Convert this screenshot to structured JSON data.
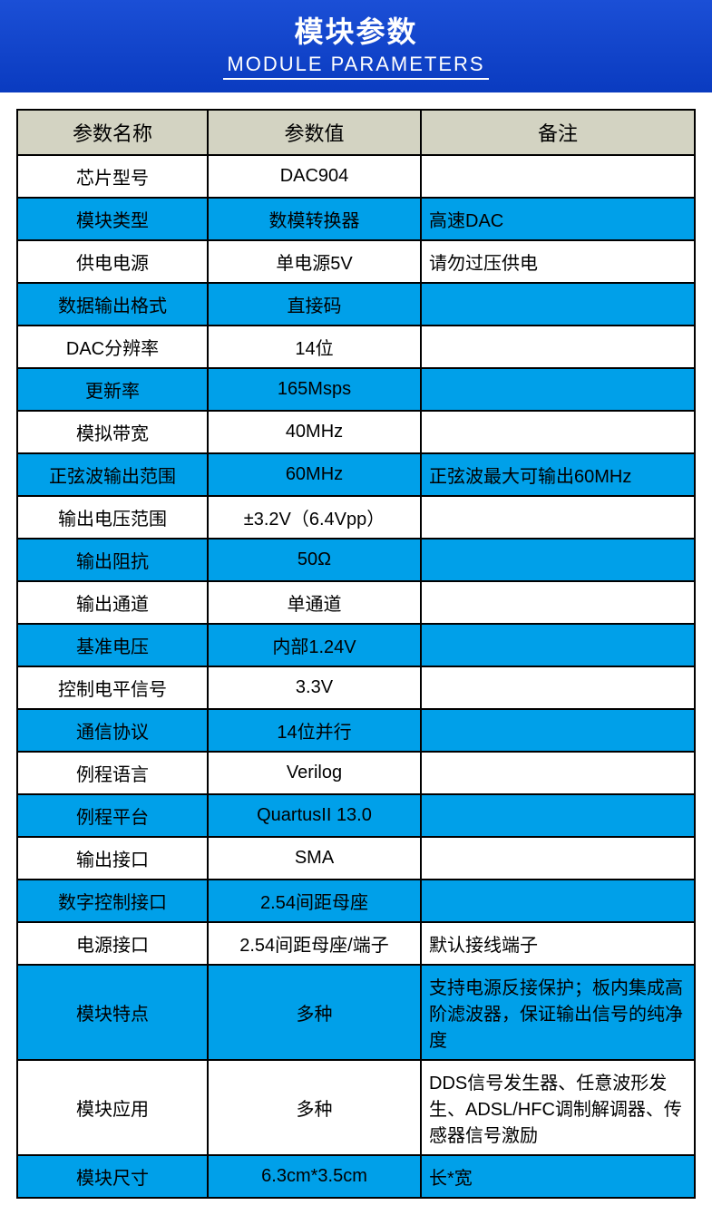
{
  "header": {
    "title_cn": "模块参数",
    "title_en": "MODULE PARAMETERS"
  },
  "table": {
    "columns": [
      "参数名称",
      "参数值",
      "备注"
    ],
    "header_bg": "#d3d3c2",
    "row_colors": {
      "blue": "#00a0e9",
      "white": "#ffffff"
    },
    "border_color": "#000000",
    "rows": [
      {
        "name": "芯片型号",
        "value": "DAC904",
        "remark": "",
        "bg": "white"
      },
      {
        "name": "模块类型",
        "value": "数模转换器",
        "remark": "高速DAC",
        "bg": "blue"
      },
      {
        "name": "供电电源",
        "value": "单电源5V",
        "remark": "请勿过压供电",
        "bg": "white"
      },
      {
        "name": "数据输出格式",
        "value": "直接码",
        "remark": "",
        "bg": "blue"
      },
      {
        "name": "DAC分辨率",
        "value": "14位",
        "remark": "",
        "bg": "white"
      },
      {
        "name": "更新率",
        "value": "165Msps",
        "remark": "",
        "bg": "blue"
      },
      {
        "name": "模拟带宽",
        "value": "40MHz",
        "remark": "",
        "bg": "white"
      },
      {
        "name": "正弦波输出范围",
        "value": "60MHz",
        "remark": "正弦波最大可输出60MHz",
        "bg": "blue"
      },
      {
        "name": "输出电压范围",
        "value": "±3.2V（6.4Vpp）",
        "remark": "",
        "bg": "white"
      },
      {
        "name": "输出阻抗",
        "value": "50Ω",
        "remark": "",
        "bg": "blue"
      },
      {
        "name": "输出通道",
        "value": "单通道",
        "remark": "",
        "bg": "white"
      },
      {
        "name": "基准电压",
        "value": "内部1.24V",
        "remark": "",
        "bg": "blue"
      },
      {
        "name": "控制电平信号",
        "value": "3.3V",
        "remark": "",
        "bg": "white"
      },
      {
        "name": "通信协议",
        "value": "14位并行",
        "remark": "",
        "bg": "blue"
      },
      {
        "name": "例程语言",
        "value": "Verilog",
        "remark": "",
        "bg": "white"
      },
      {
        "name": "例程平台",
        "value": "QuartusII 13.0",
        "remark": "",
        "bg": "blue"
      },
      {
        "name": "输出接口",
        "value": "SMA",
        "remark": "",
        "bg": "white"
      },
      {
        "name": "数字控制接口",
        "value": "2.54间距母座",
        "remark": "",
        "bg": "blue"
      },
      {
        "name": "电源接口",
        "value": "2.54间距母座/端子",
        "remark": "默认接线端子",
        "bg": "white"
      },
      {
        "name": "模块特点",
        "value": "多种",
        "remark": "支持电源反接保护；板内集成高阶滤波器，保证输出信号的纯净度",
        "bg": "blue"
      },
      {
        "name": "模块应用",
        "value": "多种",
        "remark": "DDS信号发生器、任意波形发生、ADSL/HFC调制解调器、传感器信号激励",
        "bg": "white"
      },
      {
        "name": "模块尺寸",
        "value": "6.3cm*3.5cm",
        "remark": "长*宽",
        "bg": "blue"
      }
    ]
  }
}
